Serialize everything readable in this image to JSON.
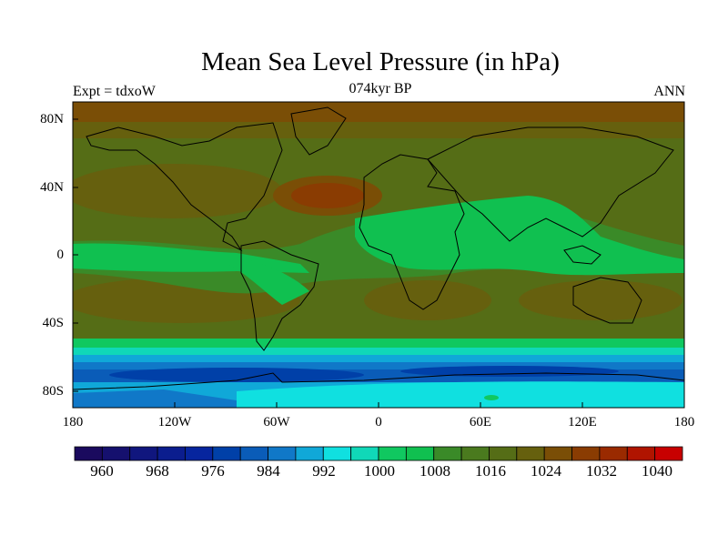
{
  "title": "Mean Sea Level Pressure (in hPa)",
  "subtitle_left": "Expt = tdxoW",
  "subtitle_center": "074kyr BP",
  "subtitle_right": "ANN",
  "map": {
    "projection": "cylindrical equidistant",
    "lon_range": [
      -180,
      180
    ],
    "lat_range": [
      -90,
      90
    ],
    "coastlines": true,
    "y_ticks": [
      "80N",
      "40N",
      "0",
      "40S",
      "80S"
    ],
    "x_ticks": [
      "180",
      "120W",
      "60W",
      "0",
      "60E",
      "120E",
      "180"
    ]
  },
  "colorbar": {
    "labels": [
      "960",
      "968",
      "976",
      "984",
      "992",
      "1000",
      "1008",
      "1016",
      "1024",
      "1032",
      "1040"
    ],
    "colors": [
      "#1a0a5e",
      "#15106e",
      "#10167e",
      "#0b1d8e",
      "#06259e",
      "#0040a8",
      "#0a5cb8",
      "#1078c8",
      "#10a8d8",
      "#10e0e0",
      "#10d8b8",
      "#10c860",
      "#10c050",
      "#3a8a28",
      "#4a7a1e",
      "#556d16",
      "#66600e",
      "#7a4e06",
      "#8a3c02",
      "#9a2a00",
      "#b01400",
      "#c80000"
    ]
  }
}
